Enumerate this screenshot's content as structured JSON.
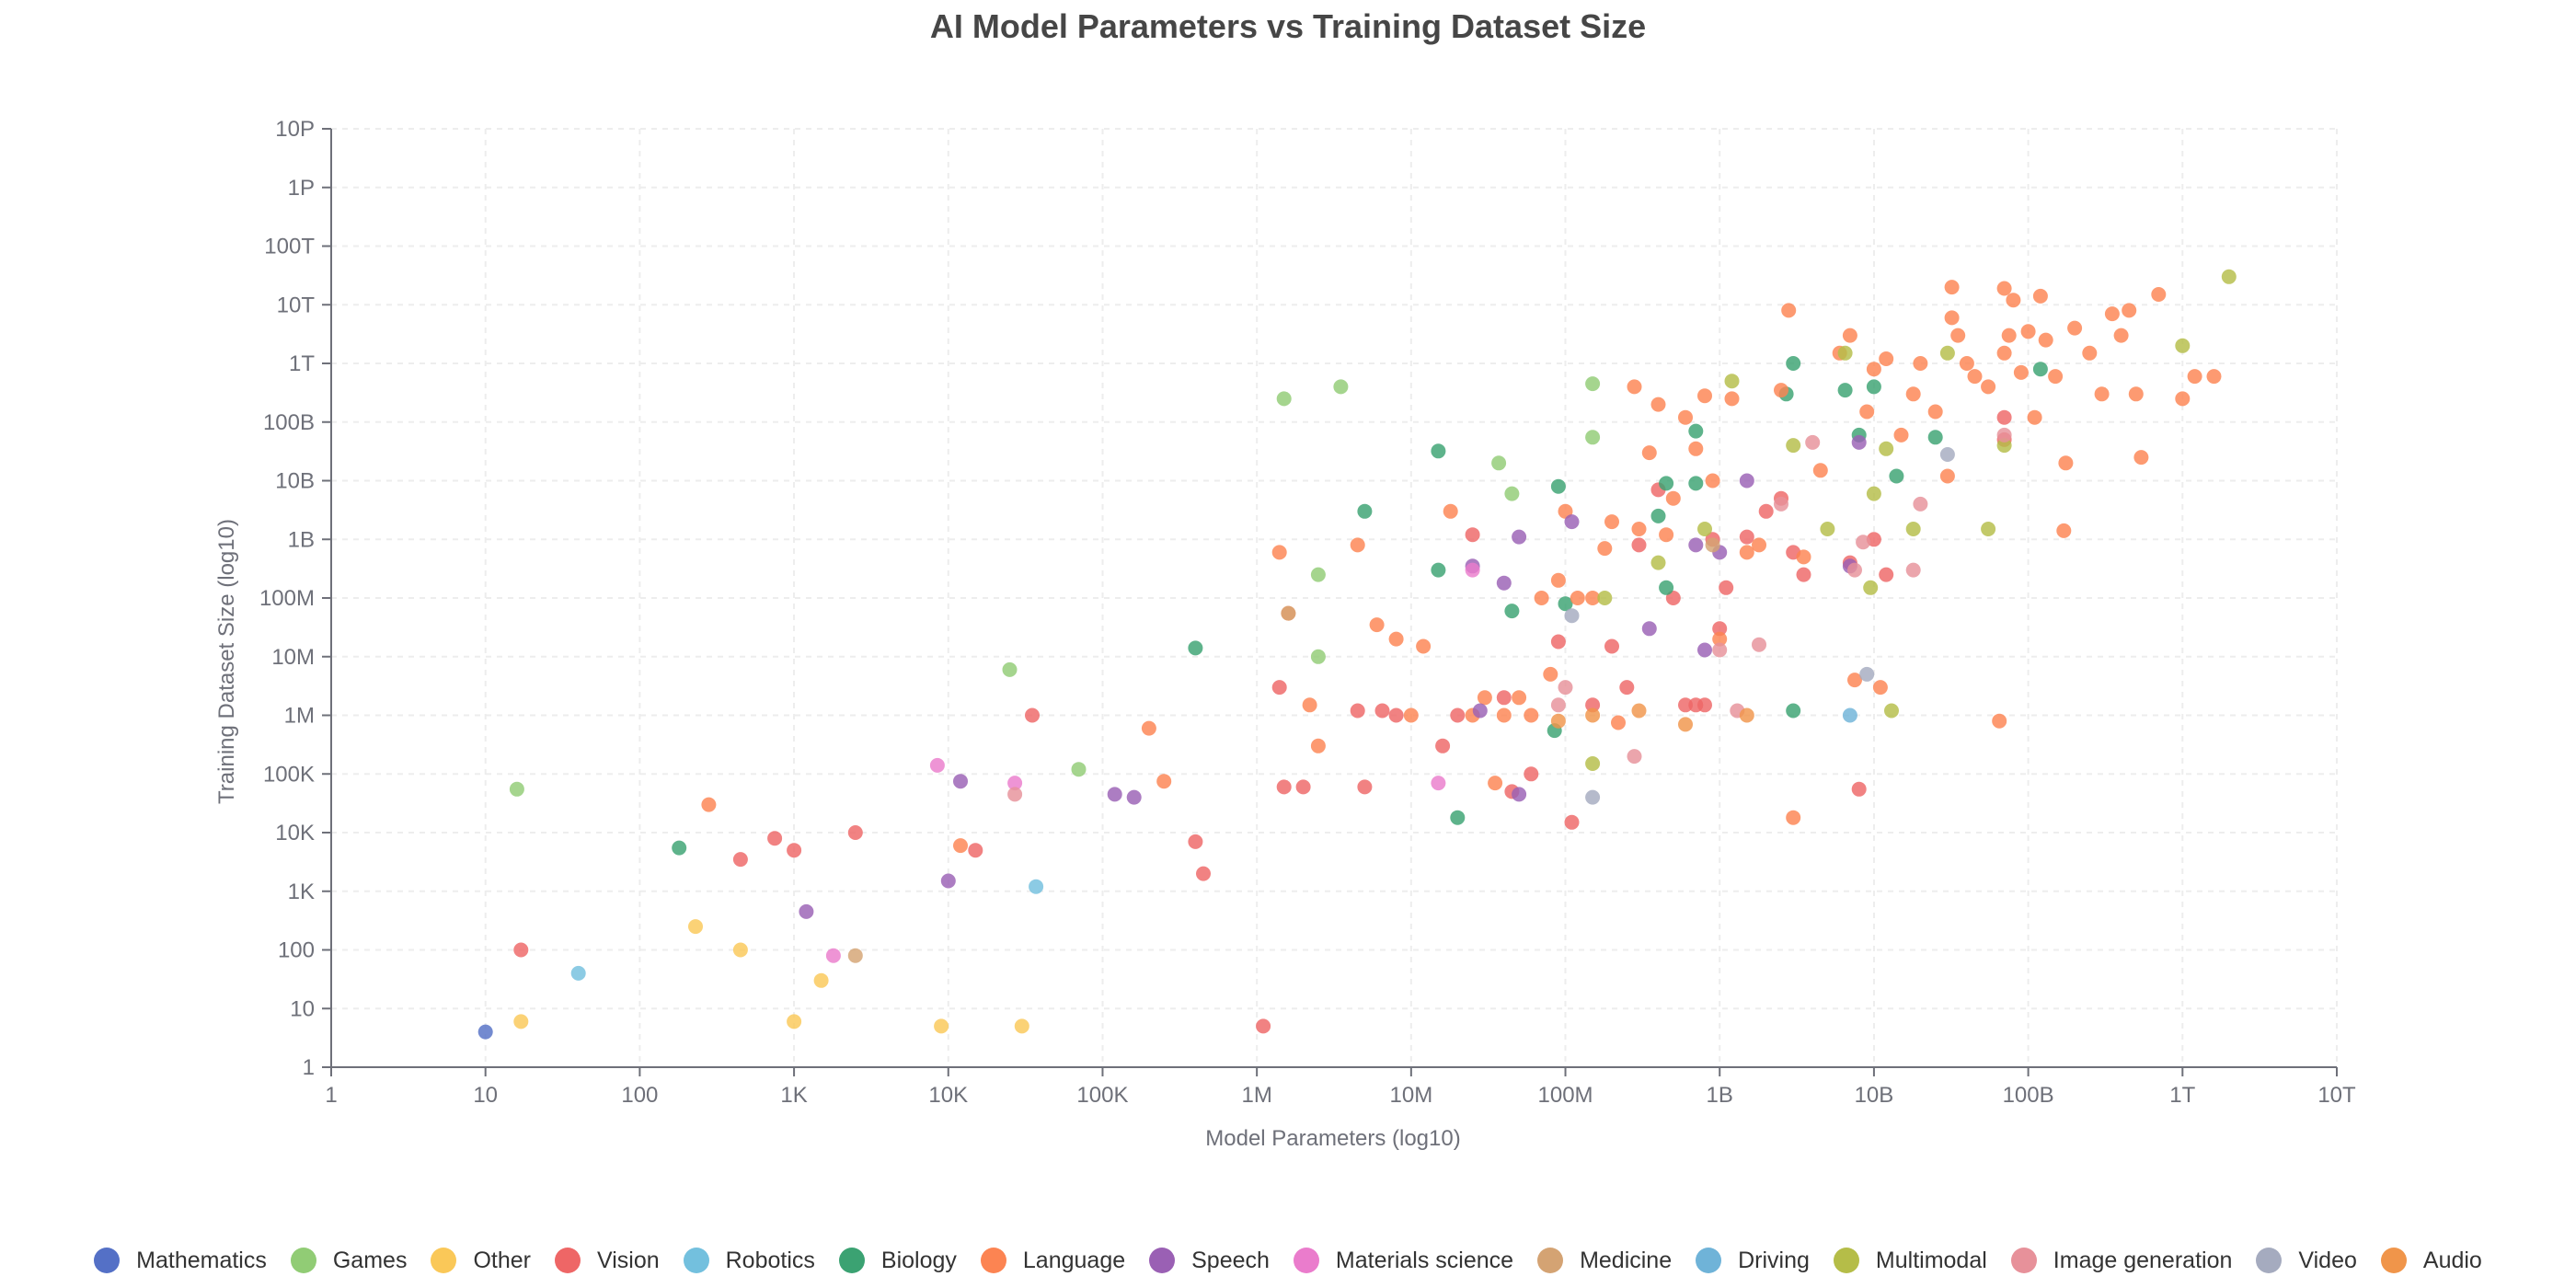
{
  "chart_data": {
    "type": "scatter",
    "title": "AI Model Parameters vs Training Dataset Size",
    "xlabel": "Model Parameters (log10)",
    "ylabel": "Training Dataset Size (log10)",
    "x_scale": "log10",
    "y_scale": "log10",
    "xlim": [
      1,
      10000000000000
    ],
    "ylim": [
      1,
      10000000000000000
    ],
    "x_ticks": [
      "1",
      "10",
      "100",
      "1K",
      "10K",
      "100K",
      "1M",
      "10M",
      "100M",
      "1B",
      "10B",
      "100B",
      "1T",
      "10T"
    ],
    "y_ticks": [
      "1",
      "10",
      "100",
      "1K",
      "10K",
      "100K",
      "1M",
      "10M",
      "100M",
      "1B",
      "10B",
      "100B",
      "1T",
      "10T",
      "100T",
      "1P",
      "10P"
    ],
    "grid": true,
    "legend_position": "bottom",
    "series": [
      {
        "name": "Mathematics",
        "color": "#5470c6",
        "points": [
          [
            10,
            4
          ]
        ]
      },
      {
        "name": "Games",
        "color": "#91cc75",
        "points": [
          [
            16,
            55000
          ],
          [
            1500000,
            250000000000
          ],
          [
            3500000,
            400000000000
          ],
          [
            2500000,
            250000000
          ],
          [
            2500000,
            10000000
          ],
          [
            25000,
            6000000
          ],
          [
            70000,
            120000
          ],
          [
            37000000,
            20000000000
          ],
          [
            45000000,
            6000000000
          ],
          [
            150000000,
            450000000000
          ],
          [
            150000000,
            55000000000
          ]
        ]
      },
      {
        "name": "Other",
        "color": "#fac858",
        "points": [
          [
            17,
            6
          ],
          [
            230,
            250
          ],
          [
            450,
            100
          ],
          [
            1000,
            6
          ],
          [
            1500,
            30
          ],
          [
            9000,
            5
          ],
          [
            30000,
            5
          ]
        ]
      },
      {
        "name": "Vision",
        "color": "#ee6666",
        "points": [
          [
            17,
            100
          ],
          [
            450,
            3500
          ],
          [
            750,
            8000
          ],
          [
            1000,
            5000
          ],
          [
            2500,
            10000
          ],
          [
            15000,
            5000
          ],
          [
            35000,
            1000000
          ],
          [
            400000,
            7000
          ],
          [
            450000,
            2000
          ],
          [
            1100000,
            5
          ],
          [
            1400000,
            3000000
          ],
          [
            1500000,
            60000
          ],
          [
            2000000,
            60000
          ],
          [
            4500000,
            1200000
          ],
          [
            5000000,
            60000
          ],
          [
            6500000,
            1200000
          ],
          [
            8000000,
            1000000
          ],
          [
            16000000,
            300000
          ],
          [
            20000000,
            1000000
          ],
          [
            25000000,
            1200000000
          ],
          [
            40000000,
            2000000
          ],
          [
            45000000,
            50000
          ],
          [
            60000000,
            100000
          ],
          [
            90000000,
            18000000
          ],
          [
            110000000,
            15000
          ],
          [
            150000000,
            1500000
          ],
          [
            200000000,
            15000000
          ],
          [
            250000000,
            3000000
          ],
          [
            300000000,
            800000000
          ],
          [
            400000000,
            7000000000
          ],
          [
            500000000,
            100000000
          ],
          [
            600000000,
            1500000
          ],
          [
            700000000,
            1500000
          ],
          [
            800000000,
            1500000
          ],
          [
            900000000,
            1000000000
          ],
          [
            1000000000,
            30000000
          ],
          [
            1100000000,
            150000000
          ],
          [
            1500000000,
            1100000000
          ],
          [
            2000000000,
            3000000000
          ],
          [
            2500000000,
            5000000000
          ],
          [
            3000000000,
            600000000
          ],
          [
            3500000000,
            250000000
          ],
          [
            7000000000,
            400000000
          ],
          [
            8000000000,
            55000
          ],
          [
            10000000000,
            1000000000
          ],
          [
            12000000000,
            250000000
          ],
          [
            70000000000,
            120000000000
          ],
          [
            70000000000,
            50000000000
          ]
        ]
      },
      {
        "name": "Robotics",
        "color": "#73c0de",
        "points": [
          [
            40,
            40
          ],
          [
            37000,
            1200
          ]
        ]
      },
      {
        "name": "Biology",
        "color": "#3ba272",
        "points": [
          [
            180,
            5500
          ],
          [
            400000,
            14000000
          ],
          [
            5000000,
            3000000000
          ],
          [
            15000000,
            32000000000
          ],
          [
            15000000,
            300000000
          ],
          [
            20000000,
            18000
          ],
          [
            45000000,
            60000000
          ],
          [
            85000000,
            550000
          ],
          [
            90000000,
            8000000000
          ],
          [
            100000000,
            80000000
          ],
          [
            400000000,
            2500000000
          ],
          [
            450000000,
            9000000000
          ],
          [
            450000000,
            150000000
          ],
          [
            700000000,
            70000000000
          ],
          [
            700000000,
            9000000000
          ],
          [
            2700000000,
            300000000000
          ],
          [
            3000000000,
            1000000000000
          ],
          [
            3000000000,
            1200000
          ],
          [
            6500000000,
            350000000000
          ],
          [
            10000000000,
            400000000000
          ],
          [
            14000000000,
            12000000000
          ],
          [
            25000000000,
            55000000000
          ],
          [
            120000000000,
            800000000000
          ],
          [
            8000000000,
            60000000000
          ]
        ]
      },
      {
        "name": "Language",
        "color": "#fc8452",
        "points": [
          [
            280,
            30000
          ],
          [
            12000,
            6000
          ],
          [
            200000,
            600000
          ],
          [
            250000,
            75000
          ],
          [
            1400000,
            600000000
          ],
          [
            1600000,
            55000000
          ],
          [
            2200000,
            1500000
          ],
          [
            2500000,
            300000
          ],
          [
            4500000,
            800000000
          ],
          [
            6000000,
            35000000
          ],
          [
            8000000,
            20000000
          ],
          [
            10000000,
            1000000
          ],
          [
            12000000,
            15000000
          ],
          [
            18000000,
            3000000000
          ],
          [
            25000000,
            1000000
          ],
          [
            30000000,
            2000000
          ],
          [
            35000000,
            70000
          ],
          [
            40000000,
            1000000
          ],
          [
            50000000,
            2000000
          ],
          [
            60000000,
            1000000
          ],
          [
            70000000,
            100000000
          ],
          [
            80000000,
            5000000
          ],
          [
            90000000,
            200000000
          ],
          [
            100000000,
            3000000000
          ],
          [
            120000000,
            100000000
          ],
          [
            150000000,
            100000000
          ],
          [
            180000000,
            700000000
          ],
          [
            200000000,
            2000000000
          ],
          [
            220000000,
            750000
          ],
          [
            280000000,
            400000000000
          ],
          [
            300000000,
            1500000000
          ],
          [
            350000000,
            30000000000
          ],
          [
            400000000,
            200000000000
          ],
          [
            450000000,
            1200000000
          ],
          [
            500000000,
            5000000000
          ],
          [
            600000000,
            120000000000
          ],
          [
            700000000,
            35000000000
          ],
          [
            800000000,
            280000000000
          ],
          [
            900000000,
            10000000000
          ],
          [
            1000000000,
            20000000
          ],
          [
            1200000000,
            250000000000
          ],
          [
            1500000000,
            600000000
          ],
          [
            1800000000,
            800000000
          ],
          [
            2500000000,
            350000000000
          ],
          [
            2800000000,
            8000000000000
          ],
          [
            3000000000,
            18000
          ],
          [
            3500000000,
            500000000
          ],
          [
            4500000000,
            15000000000
          ],
          [
            6000000000,
            1500000000000
          ],
          [
            7000000000,
            3000000000000
          ],
          [
            7500000000,
            4000000
          ],
          [
            9000000000,
            150000000000
          ],
          [
            10000000000,
            800000000000
          ],
          [
            11000000000,
            3000000
          ],
          [
            12000000000,
            1200000000000
          ],
          [
            15000000000,
            60000000000
          ],
          [
            18000000000,
            300000000000
          ],
          [
            20000000000,
            1000000000000
          ],
          [
            25000000000,
            150000000000
          ],
          [
            30000000000,
            12000000000
          ],
          [
            32000000000,
            6000000000000
          ],
          [
            35000000000,
            3000000000000
          ],
          [
            40000000000,
            1000000000000
          ],
          [
            45000000000,
            600000000000
          ],
          [
            55000000000,
            400000000000
          ],
          [
            65000000000,
            800000
          ],
          [
            70000000000,
            1500000000000
          ],
          [
            75000000000,
            3000000000000
          ],
          [
            80000000000,
            12000000000000
          ],
          [
            90000000000,
            700000000000
          ],
          [
            100000000000,
            3500000000000
          ],
          [
            110000000000,
            120000000000
          ],
          [
            130000000000,
            2500000000000
          ],
          [
            150000000000,
            600000000000
          ],
          [
            170000000000,
            1400000000
          ],
          [
            175000000000,
            20000000000
          ],
          [
            200000000000,
            4000000000000
          ],
          [
            250000000000,
            1500000000000
          ],
          [
            300000000000,
            300000000000
          ],
          [
            350000000000,
            7000000000000
          ],
          [
            400000000000,
            3000000000000
          ],
          [
            500000000000,
            300000000000
          ],
          [
            540000000000,
            25000000000
          ],
          [
            700000000000,
            15000000000000
          ],
          [
            1000000000000,
            250000000000
          ],
          [
            1200000000000,
            600000000000
          ],
          [
            1600000000000,
            600000000000
          ],
          [
            70000000000,
            19000000000000
          ],
          [
            32000000000,
            20000000000000
          ],
          [
            120000000000,
            14000000000000
          ],
          [
            450000000000,
            8000000000000
          ]
        ]
      },
      {
        "name": "Speech",
        "color": "#9a60b4",
        "points": [
          [
            1200,
            450
          ],
          [
            10000,
            1500
          ],
          [
            12000,
            75000
          ],
          [
            120000,
            45000
          ],
          [
            160000,
            40000
          ],
          [
            350000000,
            30000000
          ],
          [
            25000000,
            350000000
          ],
          [
            28000000,
            1200000
          ],
          [
            40000000,
            180000000
          ],
          [
            50000000,
            45000
          ],
          [
            110000000,
            2000000000
          ],
          [
            700000000,
            800000000
          ],
          [
            800000000,
            13000000
          ],
          [
            1500000000,
            10000000000
          ],
          [
            7000000000,
            350000000
          ],
          [
            8000000000,
            45000000000
          ],
          [
            50000000,
            1100000000
          ],
          [
            1000000000,
            600000000
          ]
        ]
      },
      {
        "name": "Materials science",
        "color": "#ea7ccc",
        "points": [
          [
            1800,
            80
          ],
          [
            8500,
            140000
          ],
          [
            27000,
            70000
          ],
          [
            15000000,
            70000
          ],
          [
            25000000,
            300000000
          ]
        ]
      },
      {
        "name": "Medicine",
        "color": "#d4a373",
        "points": [
          [
            2500,
            80
          ],
          [
            1600000,
            55000000
          ],
          [
            900000000,
            800000000
          ]
        ]
      },
      {
        "name": "Driving",
        "color": "#6fb3d8",
        "points": [
          [
            7000000000,
            1000000
          ]
        ]
      },
      {
        "name": "Multimodal",
        "color": "#b5bd48",
        "points": [
          [
            150000000,
            150000
          ],
          [
            180000000,
            100000000
          ],
          [
            400000000,
            400000000
          ],
          [
            800000000,
            1500000000
          ],
          [
            1200000000,
            500000000000
          ],
          [
            3000000000,
            40000000000
          ],
          [
            5000000000,
            1500000000
          ],
          [
            6500000000,
            1500000000000
          ],
          [
            10000000000,
            6000000000
          ],
          [
            9500000000,
            150000000
          ],
          [
            12000000000,
            35000000000
          ],
          [
            13000000000,
            1200000
          ],
          [
            18000000000,
            1500000000
          ],
          [
            30000000000,
            1500000000000
          ],
          [
            55000000000,
            1500000000
          ],
          [
            70000000000,
            40000000000
          ],
          [
            1000000000000,
            2000000000000
          ],
          [
            2000000000000,
            30000000000000
          ]
        ]
      },
      {
        "name": "Image generation",
        "color": "#e7919a",
        "points": [
          [
            27000,
            45000
          ],
          [
            90000000,
            1500000
          ],
          [
            100000000,
            3000000
          ],
          [
            280000000,
            200000
          ],
          [
            1000000000,
            13000000
          ],
          [
            1300000000,
            1200000
          ],
          [
            1800000000,
            16000000
          ],
          [
            2500000000,
            4000000000
          ],
          [
            4000000000,
            45000000000
          ],
          [
            7500000000,
            300000000
          ],
          [
            8500000000,
            900000000
          ],
          [
            18000000000,
            300000000
          ],
          [
            20000000000,
            4000000000
          ],
          [
            70000000000,
            60000000000
          ]
        ]
      },
      {
        "name": "Video",
        "color": "#a5abbf",
        "points": [
          [
            110000000,
            50000000
          ],
          [
            150000000,
            40000
          ],
          [
            9000000000,
            5000000
          ],
          [
            30000000000,
            28000000000
          ]
        ]
      },
      {
        "name": "Audio",
        "color": "#f0954a",
        "points": [
          [
            90000000,
            800000
          ],
          [
            150000000,
            1000000
          ],
          [
            300000000,
            1200000
          ],
          [
            600000000,
            700000
          ],
          [
            1500000000,
            1000000
          ]
        ]
      }
    ]
  }
}
